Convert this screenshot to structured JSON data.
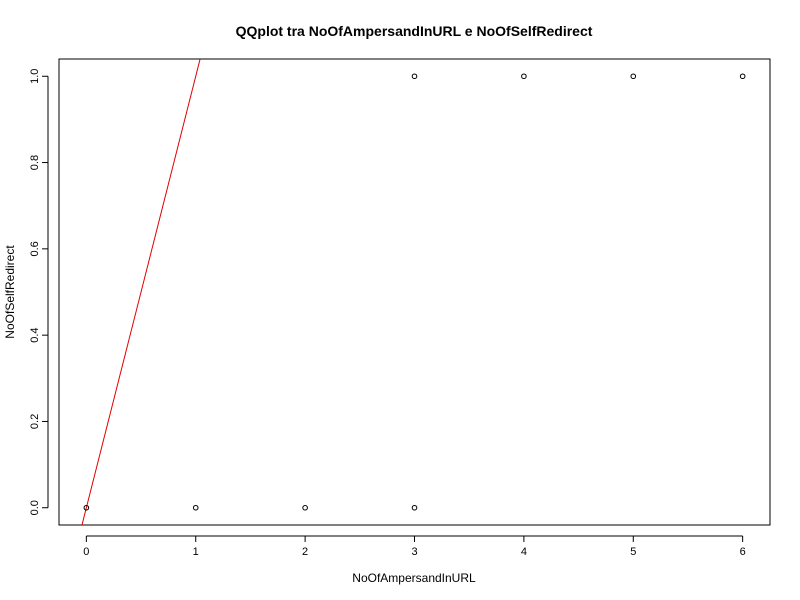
{
  "chart_data": {
    "type": "scatter",
    "title": "QQplot tra NoOfAmpersandInURL e NoOfSelfRedirect",
    "xlabel": "NoOfAmpersandInURL",
    "ylabel": "NoOfSelfRedirect",
    "xlim": [
      -0.25,
      6.25
    ],
    "ylim": [
      -0.04,
      1.04
    ],
    "x_ticks": [
      0,
      1,
      2,
      3,
      4,
      5,
      6
    ],
    "x_tick_labels": [
      "0",
      "1",
      "2",
      "3",
      "4",
      "5",
      "6"
    ],
    "y_ticks": [
      0,
      0.2,
      0.4,
      0.6,
      0.8,
      1.0
    ],
    "y_tick_labels": [
      "0.0",
      "0.2",
      "0.4",
      "0.6",
      "0.8",
      "1.0"
    ],
    "grid": false,
    "series": [
      {
        "x": [
          0,
          1,
          2,
          3,
          3,
          4,
          5,
          6
        ],
        "y": [
          0,
          0,
          0,
          0,
          1,
          1,
          1,
          1
        ]
      }
    ],
    "reference_line": {
      "intercept": 0,
      "slope": 1,
      "color": "#e00000"
    },
    "colors": {
      "points": "#000000",
      "reference_line": "#e00000"
    }
  }
}
